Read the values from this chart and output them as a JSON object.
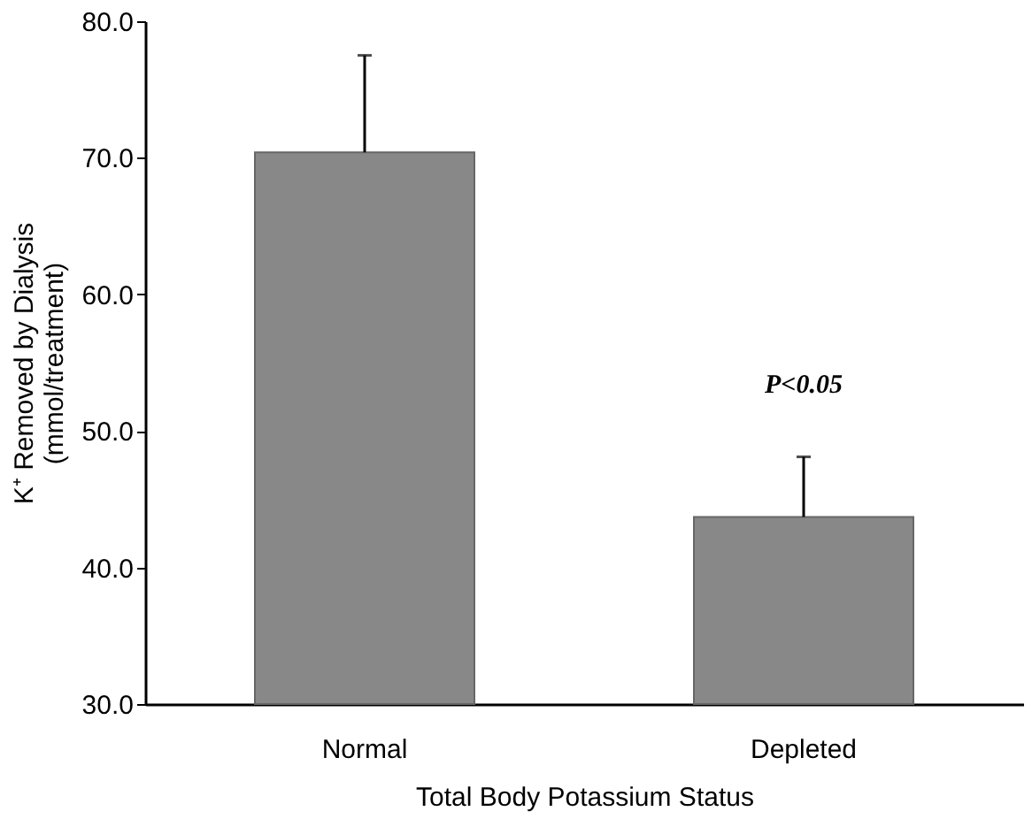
{
  "chart_data": {
    "type": "bar",
    "xlabel": "Total Body Potassium Status",
    "ylabel": "K⁺ Removed by Dialysis\n(mmol/treatment)",
    "categories": [
      "Normal",
      "Depleted"
    ],
    "values": [
      70.4,
      43.7
    ],
    "errors": [
      [
        70.4,
        77.5
      ],
      [
        43.7,
        48.1
      ]
    ],
    "color": "#888888",
    "ylim": [
      30,
      80
    ],
    "yticks": [
      {
        "value": 30,
        "label": "30.0"
      },
      {
        "value": 40,
        "label": "40.0"
      },
      {
        "value": 50,
        "label": "50.0"
      },
      {
        "value": 60,
        "label": "60.0"
      },
      {
        "value": 70,
        "label": "70.0"
      },
      {
        "value": 80,
        "label": "80.0"
      }
    ],
    "annotations": [
      "P<0.05"
    ],
    "grid": false
  }
}
